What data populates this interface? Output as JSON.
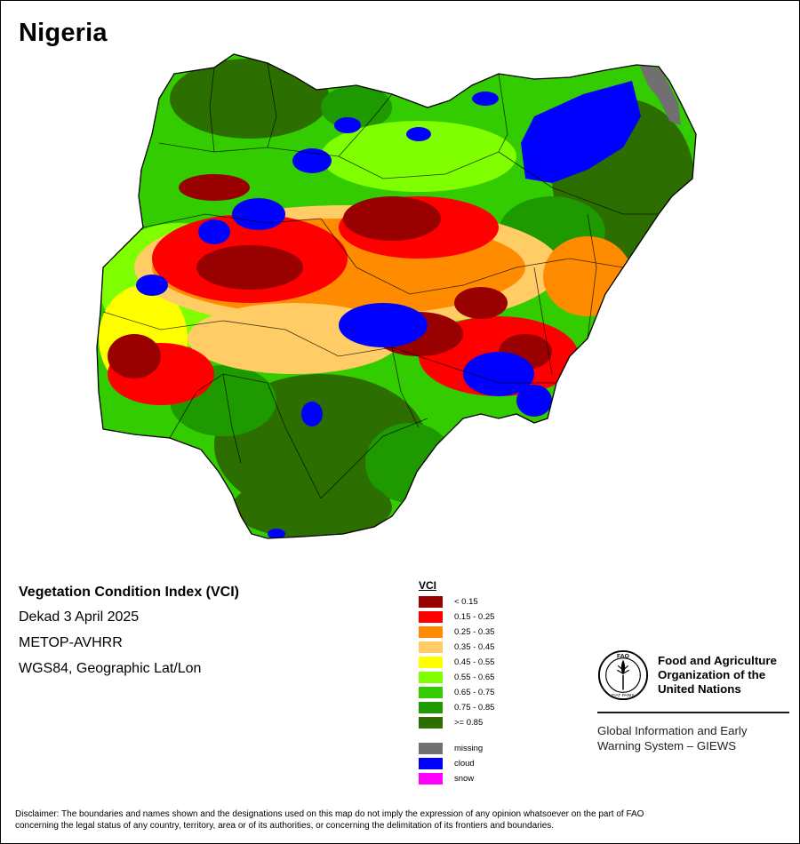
{
  "title": "Nigeria",
  "info": {
    "heading": "Vegetation Condition Index (VCI)",
    "period": "Dekad 3 April 2025",
    "sensor": "METOP-AVHRR",
    "projection": "WGS84, Geographic Lat/Lon"
  },
  "legend": {
    "title": "VCI",
    "classes": [
      {
        "label": "< 0.15",
        "color": "#990000"
      },
      {
        "label": "0.15 - 0.25",
        "color": "#ff0000"
      },
      {
        "label": "0.25 - 0.35",
        "color": "#ff8c00"
      },
      {
        "label": "0.35 - 0.45",
        "color": "#ffcc66"
      },
      {
        "label": "0.45 - 0.55",
        "color": "#ffff00"
      },
      {
        "label": "0.55 - 0.65",
        "color": "#7fff00"
      },
      {
        "label": "0.65 - 0.75",
        "color": "#33cc00"
      },
      {
        "label": "0.75 - 0.85",
        "color": "#1e9900"
      },
      {
        "label": ">= 0.85",
        "color": "#2d6e00"
      }
    ],
    "other": [
      {
        "label": "missing",
        "color": "#707070"
      },
      {
        "label": "cloud",
        "color": "#0000ff"
      },
      {
        "label": "snow",
        "color": "#ff00ff"
      }
    ]
  },
  "fao": {
    "logo_text": "FAO",
    "logo_motto": "FIAT PANIS",
    "org_line1": "Food and Agriculture",
    "org_line2": "Organization of the",
    "org_line3": "United Nations",
    "giews_line1": "Global Information and Early",
    "giews_line2": "Warning System – GIEWS"
  },
  "disclaimer_line1": "Disclaimer: The boundaries and names shown and the designations used on this map do not imply the expression of any opinion whatsoever on the part of FAO",
  "disclaimer_line2": "concerning the legal status of any country, territory, area or of its authorities, or concerning the delimitation of its frontiers and boundaries."
}
